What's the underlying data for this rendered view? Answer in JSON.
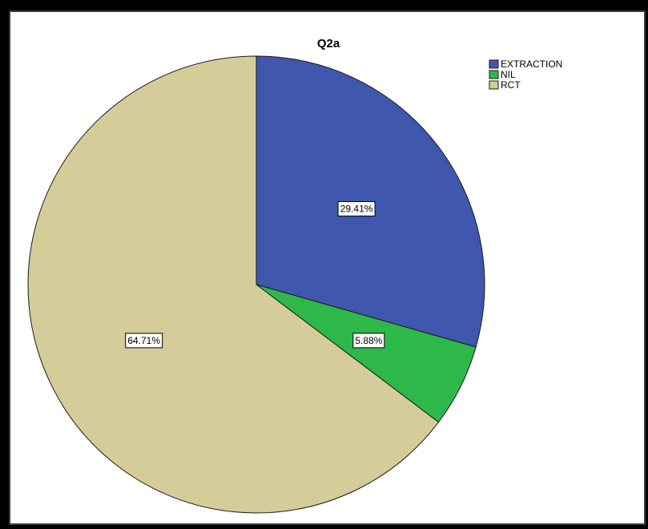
{
  "chart_data": {
    "type": "pie",
    "title": "Q2a",
    "categories": [
      "EXTRACTION",
      "NIL",
      "RCT"
    ],
    "values": [
      29.41,
      5.88,
      64.71
    ],
    "data_labels": [
      "29.41%",
      "5.88%",
      "64.71%"
    ],
    "colors": [
      "#3f58ad",
      "#2fb84a",
      "#d4cd99"
    ],
    "start_angle_deg": 0,
    "direction": "clockwise",
    "legend": {
      "placement": "top-right",
      "entries": [
        "EXTRACTION",
        "NIL",
        "RCT"
      ]
    }
  }
}
